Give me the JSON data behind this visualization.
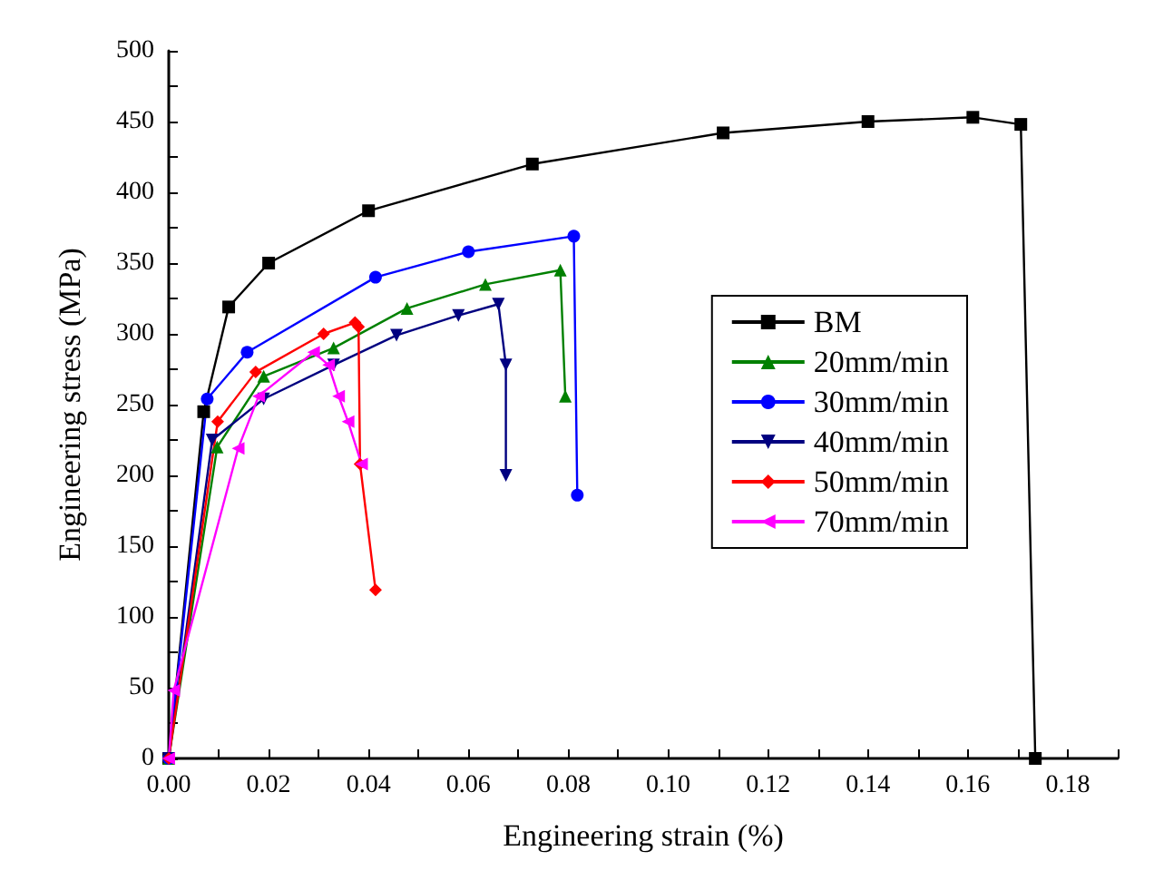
{
  "chart_data": {
    "type": "line",
    "xlabel": "Engineering strain (%)",
    "ylabel": "Engineering stress (MPa)",
    "xlim": [
      0,
      0.19
    ],
    "xticks": [
      {
        "value": 0,
        "label": "0.00"
      },
      0.02,
      0.04,
      0.06,
      0.08,
      {
        "value": 0.1,
        "label": "0.10"
      },
      0.12,
      0.14,
      0.16,
      0.18
    ],
    "ylim": [
      0,
      500
    ],
    "yticks": [
      0,
      50,
      100,
      150,
      200,
      250,
      300,
      350,
      400,
      450,
      500
    ],
    "grid": false,
    "legend": "right",
    "line_style": "solid",
    "series": [
      {
        "name": "BM",
        "color": "#000000",
        "marker": "square",
        "x": [
          0,
          0.007,
          0.012,
          0.02,
          0.04,
          0.0728,
          0.111,
          0.14,
          0.161,
          0.1706,
          0.1735
        ],
        "values": [
          0,
          245,
          319,
          350,
          387,
          420,
          442,
          450,
          453,
          448,
          0
        ]
      },
      {
        "name": "20mm/min",
        "color": "#008000",
        "marker": "triangle",
        "x": [
          0,
          0.0097,
          0.019,
          0.033,
          0.0477,
          0.0634,
          0.0784,
          0.0794
        ],
        "values": [
          0,
          220,
          270,
          290,
          318,
          335,
          345,
          256
        ]
      },
      {
        "name": "30mm/min",
        "color": "#0000ff",
        "marker": "circle",
        "x": [
          0,
          0.0077,
          0.0157,
          0.0414,
          0.06,
          0.0811,
          0.0818
        ],
        "values": [
          0,
          254,
          287,
          340,
          358,
          369,
          186
        ]
      },
      {
        "name": "40mm/min",
        "color": "#000080",
        "marker": "triangle-down",
        "x": [
          0,
          0.0087,
          0.019,
          0.033,
          0.0456,
          0.058,
          0.066,
          0.0675,
          0.0675
        ],
        "values": [
          0,
          225,
          254,
          278,
          299,
          313,
          321,
          278,
          200
        ]
      },
      {
        "name": "50mm/min",
        "color": "#ff0000",
        "marker": "diamond",
        "x": [
          0,
          0.0098,
          0.0174,
          0.031,
          0.0373,
          0.038,
          0.0383,
          0.0414
        ],
        "values": [
          0,
          238,
          273,
          300,
          308,
          305,
          208,
          119
        ]
      },
      {
        "name": "70mm/min",
        "color": "#ff00ff",
        "marker": "triangle-left",
        "x": [
          0,
          0.001,
          0.0139,
          0.018,
          0.029,
          0.032,
          0.034,
          0.0359,
          0.0386
        ],
        "values": [
          0,
          48,
          219,
          256,
          287,
          278,
          256,
          238,
          208
        ]
      }
    ]
  }
}
